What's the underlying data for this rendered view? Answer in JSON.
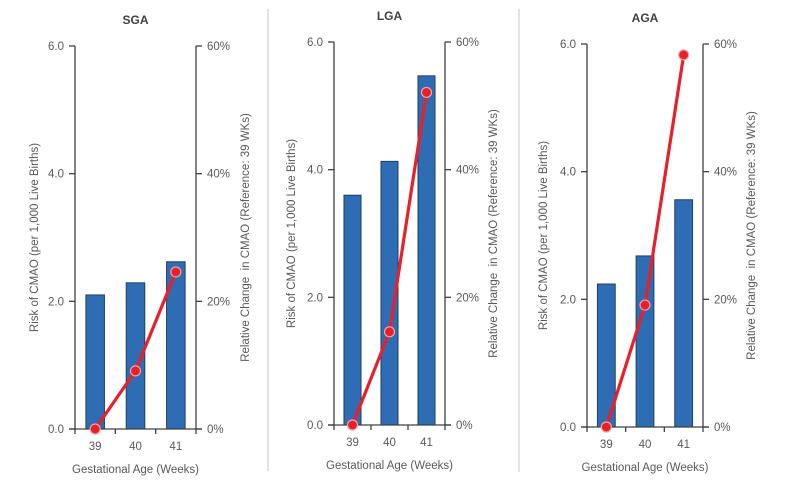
{
  "colors": {
    "bar": "#2e6db4",
    "line": "#e8202a",
    "separator": "#d9d9d9",
    "axis": "#404040"
  },
  "chart_data": [
    {
      "type": "bar",
      "combo_with": "line",
      "title": "SGA",
      "categories": [
        "39",
        "40",
        "41"
      ],
      "xlabel": "Gestational Age (Weeks)",
      "ylabel": "Risk of CMAO (per 1,000 Live Births)",
      "y2label": "Relative Change  in CMAO (Reference: 39 WKs)",
      "ylim": [
        0,
        6.0
      ],
      "y2lim": [
        0,
        60
      ],
      "yticks": [
        "0.0",
        "2.0",
        "4.0",
        "6.0"
      ],
      "y2ticks": [
        "0%",
        "20%",
        "40%",
        "60%"
      ],
      "series": [
        {
          "name": "Risk of CMAO",
          "type": "bar",
          "axis": "left",
          "values": [
            2.1,
            2.29,
            2.62
          ]
        },
        {
          "name": "Relative Change in CMAO (%)",
          "type": "line",
          "axis": "right",
          "values": [
            0,
            9.1,
            24.6
          ]
        }
      ],
      "grid": false
    },
    {
      "type": "bar",
      "combo_with": "line",
      "title": "LGA",
      "categories": [
        "39",
        "40",
        "41"
      ],
      "xlabel": "Gestational Age (Weeks)",
      "ylabel": "Risk of CMAO (per 1,000 Live Births)",
      "y2label": "Relative Change  in CMAO (Reference: 39 WKs)",
      "ylim": [
        0,
        6.0
      ],
      "y2lim": [
        0,
        60
      ],
      "yticks": [
        "0.0",
        "2.0",
        "4.0",
        "6.0"
      ],
      "y2ticks": [
        "0%",
        "20%",
        "40%",
        "60%"
      ],
      "series": [
        {
          "name": "Risk of CMAO",
          "type": "bar",
          "axis": "left",
          "values": [
            3.6,
            4.13,
            5.47
          ]
        },
        {
          "name": "Relative Change in CMAO (%)",
          "type": "line",
          "axis": "right",
          "values": [
            0,
            14.6,
            52.1
          ]
        }
      ],
      "grid": false
    },
    {
      "type": "bar",
      "combo_with": "line",
      "title": "AGA",
      "categories": [
        "39",
        "40",
        "41"
      ],
      "xlabel": "Gestational Age (Weeks)",
      "ylabel": "Risk of CMAO (per 1,000 Live Births)",
      "y2label": "Relative Change  in CMAO (Reference: 39 WKs)",
      "ylim": [
        0,
        6.0
      ],
      "y2lim": [
        0,
        60
      ],
      "yticks": [
        "0.0",
        "2.0",
        "4.0",
        "6.0"
      ],
      "y2ticks": [
        "0%",
        "20%",
        "40%",
        "60%"
      ],
      "series": [
        {
          "name": "Risk of CMAO",
          "type": "bar",
          "axis": "left",
          "values": [
            2.24,
            2.68,
            3.56
          ]
        },
        {
          "name": "Relative Change in CMAO (%)",
          "type": "line",
          "axis": "right",
          "values": [
            0,
            19.1,
            58.3
          ]
        }
      ],
      "grid": false
    }
  ]
}
